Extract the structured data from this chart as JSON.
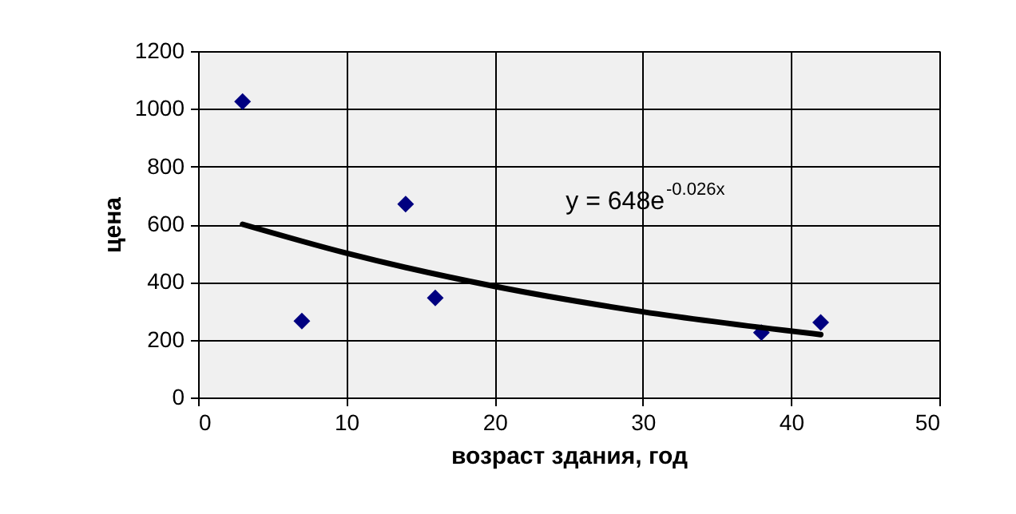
{
  "chart_data": {
    "type": "scatter",
    "xlabel": "возраст здания, год",
    "ylabel": "цена",
    "xlim": [
      0,
      50
    ],
    "xticks": [
      0,
      10,
      20,
      30,
      40,
      50
    ],
    "ylim": [
      0,
      1200
    ],
    "yticks": [
      0,
      200,
      400,
      600,
      800,
      1000,
      1200
    ],
    "grid": true,
    "series": [
      {
        "marker": "diamond",
        "color": "#000080",
        "x": [
          3,
          7,
          14,
          16,
          38,
          42
        ],
        "values": [
          1025,
          265,
          670,
          345,
          225,
          260
        ]
      },
      {
        "type": "line",
        "marker": "none",
        "color": "#000000",
        "x": [
          3,
          10,
          20,
          30,
          42
        ],
        "values": [
          600,
          500,
          385,
          297,
          218
        ]
      }
    ],
    "annotations": [
      "y = 648e$^{-0.026x}$"
    ]
  }
}
